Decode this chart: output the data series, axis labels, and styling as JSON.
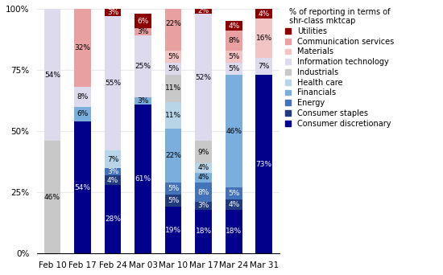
{
  "categories": [
    "Feb 10",
    "Feb 17",
    "Feb 24",
    "Mar 03",
    "Mar 10",
    "Mar 17",
    "Mar 24",
    "Mar 31"
  ],
  "series_order": [
    "Consumer discretionary",
    "Consumer staples",
    "Energy",
    "Financials",
    "Health care",
    "Industrials",
    "Information technology",
    "Materials",
    "Communication services",
    "Utilities"
  ],
  "series": {
    "Consumer discretionary": [
      0,
      54,
      28,
      61,
      19,
      18,
      18,
      73
    ],
    "Consumer staples": [
      0,
      0,
      4,
      0,
      5,
      3,
      4,
      0
    ],
    "Energy": [
      0,
      0,
      3,
      0,
      5,
      8,
      5,
      0
    ],
    "Financials": [
      0,
      6,
      0,
      3,
      22,
      4,
      46,
      0
    ],
    "Health care": [
      0,
      0,
      7,
      0,
      11,
      4,
      0,
      0
    ],
    "Industrials": [
      46,
      0,
      0,
      0,
      11,
      9,
      0,
      0
    ],
    "Information technology": [
      54,
      8,
      55,
      25,
      5,
      52,
      5,
      7
    ],
    "Materials": [
      0,
      0,
      0,
      0,
      5,
      0,
      5,
      16
    ],
    "Communication services": [
      0,
      32,
      0,
      3,
      22,
      0,
      8,
      0
    ],
    "Utilities": [
      0,
      0,
      3,
      6,
      0,
      2,
      4,
      4
    ]
  },
  "colors": {
    "Consumer discretionary": "#00008B",
    "Consumer staples": "#213a7d",
    "Energy": "#4472b8",
    "Financials": "#7aaedc",
    "Health care": "#b8d5e8",
    "Industrials": "#c8c8c8",
    "Information technology": "#dcdaec",
    "Materials": "#f2c4c4",
    "Communication services": "#e8a0a0",
    "Utilities": "#8B0000"
  },
  "label_colors": {
    "Consumer discretionary": "white",
    "Consumer staples": "white",
    "Energy": "white",
    "Financials": "black",
    "Health care": "black",
    "Industrials": "black",
    "Information technology": "black",
    "Materials": "black",
    "Communication services": "black",
    "Utilities": "white"
  },
  "ylabel_title": "% of reporting in terms of\nshr-class mktcap",
  "ylim": [
    0,
    100
  ],
  "yticks": [
    0,
    25,
    50,
    75,
    100
  ],
  "label_fontsize": 6.5,
  "tick_fontsize": 7.5,
  "legend_fontsize": 7.0,
  "bar_width": 0.55
}
